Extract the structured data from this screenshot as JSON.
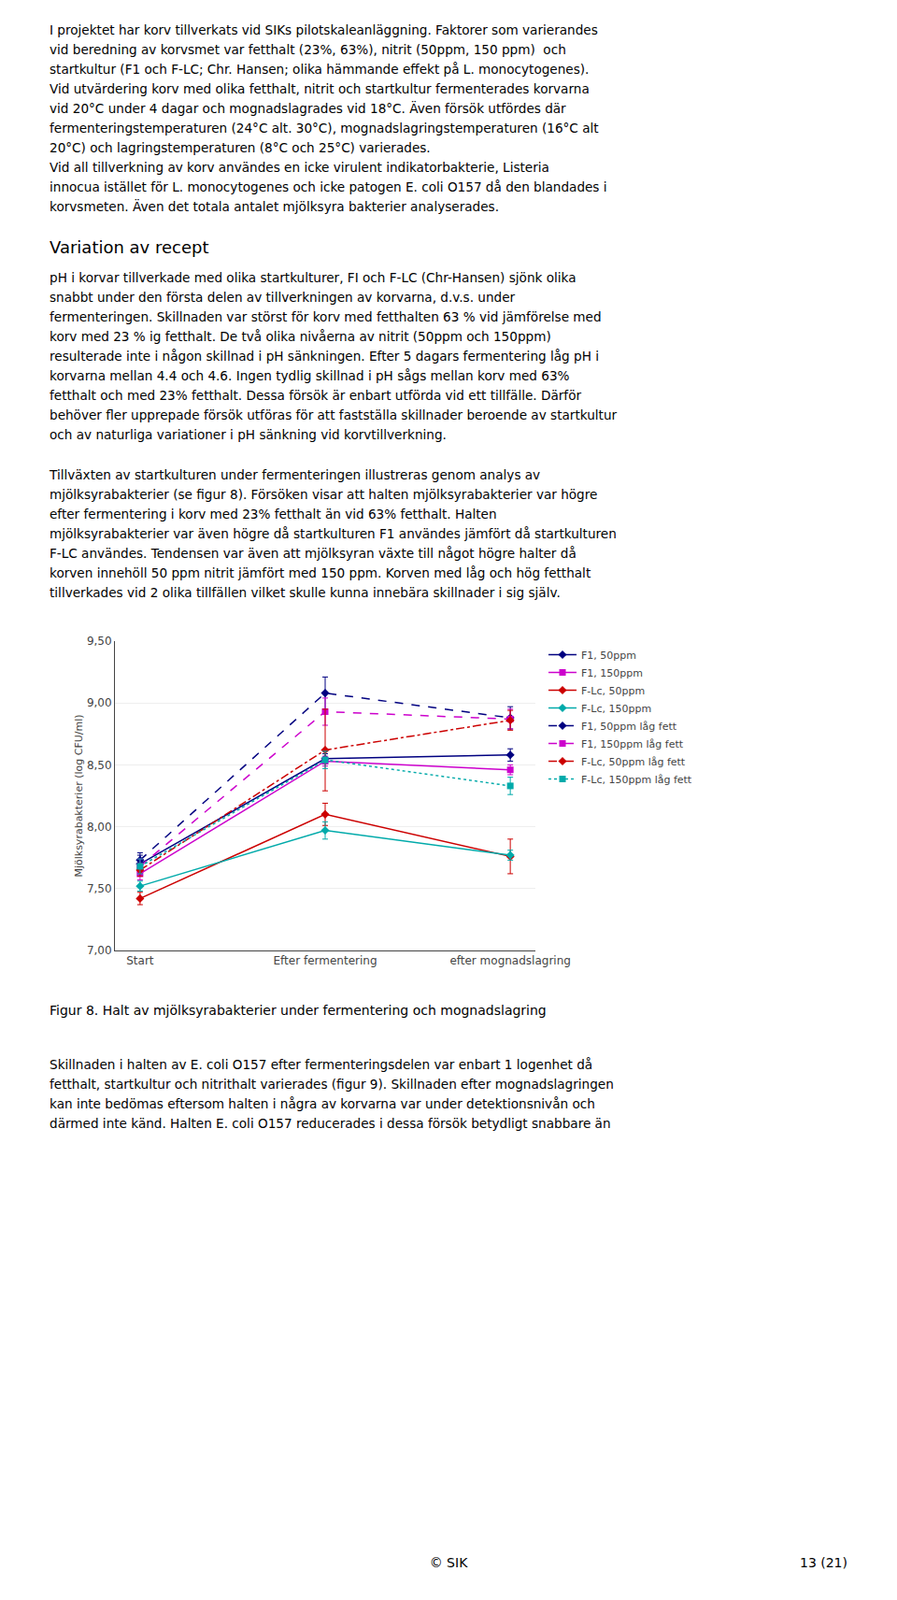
{
  "chart_data": {
    "type": "line",
    "intro": "I projektet har korv tillverkats vid SIKs pilotskaleanläggning. Faktorer som varierandes\nvid beredning av korvsmet var fetthalt (23%, 63%), nitrit (50ppm, 150 ppm)  och\nstartkultur (F1 och F-LC; Chr. Hansen; olika hämmande effekt på L. monocytogenes).\nVid utvärdering korv med olika fetthalt, nitrit och startkultur fermenterades korvarna\nvid 20°C under 4 dagar och mognadslagrades vid 18°C. Även försök utfördes där\nfermenteringstemperaturen (24°C alt. 30°C), mognadslagringstemperaturen (16°C alt\n20°C) och lagringstemperaturen (8°C och 25°C) varierades.\nVid all tillverkning av korv användes en icke virulent indikatorbakterie, Listeria\ninnocua istället för L. monocytogenes och icke patogen E. coli O157 då den blandades i\nkorvsmeten. Även det totala antalet mjölksyra bakterier analyserades.",
    "heading": "Variation av recept",
    "paragraphs": [
      "pH i korvar tillverkade med olika startkulturer, FI och F-LC (Chr-Hansen) sjönk olika\nsnabbt under den första delen av tillverkningen av korvarna, d.v.s. under\nfermenteringen. Skillnaden var störst för korv med fetthalten 63 % vid jämförelse med\nkorv med 23 % ig fetthalt. De två olika nivåerna av nitrit (50ppm och 150ppm)\nresulterade inte i någon skillnad i pH sänkningen. Efter 5 dagars fermentering låg pH i\nkorvarna mellan 4.4 och 4.6. Ingen tydlig skillnad i pH sågs mellan korv med 63%\nfetthalt och med 23% fetthalt. Dessa försök är enbart utförda vid ett tillfälle. Därför\nbehöver fler upprepade försök utföras för att fastställa skillnader beroende av startkultur\noch av naturliga variationer i pH sänkning vid korvtillverkning.",
      "Tillväxten av startkulturen under fermenteringen illustreras genom analys av\nmjölksyrabakterier (se figur 8). Försöken visar att halten mjölksyrabakterier var högre\nefter fermentering i korv med 23% fetthalt än vid 63% fetthalt. Halten\nmjölksyrabakterier var även högre då startkulturen F1 användes jämfört då startkulturen\nF-LC användes. Tendensen var även att mjölksyran växte till något högre halter då\nkorven innehöll 50 ppm nitrit jämfört med 150 ppm. Korven med låg och hög fetthalt\ntillverkades vid 2 olika tillfällen vilket skulle kunna innebära skillnader i sig själv."
    ],
    "caption": "Figur 8. Halt av mjölksyrabakterier under fermentering och mognadslagring",
    "after": [
      "Skillnaden i halten av E. coli O157 efter fermenteringsdelen var enbart 1 logenhet då\nfetthalt, startkultur och nitrithalt varierades (figur 9). Skillnaden efter mognadslagringen\nkan inte bedömas eftersom halten i några av korvarna var under detektionsnivån och\ndärmed inte känd. Halten E. coli O157 reducerades i dessa försök betydligt snabbare än"
    ],
    "footer": [
      "© SIK",
      "13 (21)"
    ],
    "categories": [
      "Start",
      "Efter fermentering",
      "efter mognadslagring"
    ],
    "ylabel": "Mjölksyrabakterier (log CFU/ml)",
    "ylim": [
      7.0,
      9.5
    ],
    "yticks": [
      {
        "value": 7.0,
        "label": "7,00"
      },
      {
        "value": 7.5,
        "label": "7,50"
      },
      {
        "value": 8.0,
        "label": "8,00"
      },
      {
        "value": 8.5,
        "label": "8,50"
      },
      {
        "value": 9.0,
        "label": "9,00"
      },
      {
        "value": 9.5,
        "label": "9,50"
      }
    ],
    "grid": true,
    "legend": "right",
    "series": [
      {
        "name": "F1, 50ppm",
        "color": "#000080",
        "marker": "diamond",
        "line_style": "solid",
        "values": [
          7.7,
          8.55,
          8.58
        ],
        "errors": [
          0.07,
          0.04,
          0.05
        ]
      },
      {
        "name": "F1, 150ppm",
        "color": "#CC00CC",
        "marker": "square",
        "line_style": "solid",
        "values": [
          7.62,
          8.53,
          8.46
        ],
        "errors": [
          0.05,
          0.04,
          0.04
        ]
      },
      {
        "name": "F-Lc, 50ppm",
        "color": "#CC0000",
        "marker": "diamond",
        "line_style": "solid",
        "values": [
          7.42,
          8.1,
          7.76
        ],
        "errors": [
          0.05,
          0.09,
          0.14
        ]
      },
      {
        "name": "F-Lc, 150ppm",
        "color": "#00AAAA",
        "marker": "diamond",
        "line_style": "solid",
        "values": [
          7.52,
          7.97,
          7.77
        ],
        "errors": [
          0.04,
          0.07,
          0.04
        ]
      },
      {
        "name": "F1, 50ppm låg fett",
        "color": "#000080",
        "marker": "diamond",
        "line_style": "dash",
        "values": [
          7.73,
          9.08,
          8.88
        ],
        "errors": [
          0.06,
          0.13,
          0.09
        ]
      },
      {
        "name": "F1, 150ppm låg fett",
        "color": "#CC00CC",
        "marker": "square",
        "line_style": "dash",
        "values": [
          7.68,
          8.93,
          8.87
        ],
        "errors": [
          0.06,
          0.11,
          0.08
        ]
      },
      {
        "name": "F-Lc, 50ppm låg fett",
        "color": "#CC0000",
        "marker": "diamond",
        "line_style": "dashdot",
        "values": [
          7.65,
          8.62,
          8.86
        ],
        "errors": [
          0.05,
          0.33,
          0.08
        ]
      },
      {
        "name": "F-Lc, 150ppm låg fett",
        "color": "#00AAAA",
        "marker": "square",
        "line_style": "dot",
        "values": [
          7.68,
          8.54,
          8.33
        ],
        "errors": [
          0.06,
          0.07,
          0.07
        ]
      }
    ]
  }
}
